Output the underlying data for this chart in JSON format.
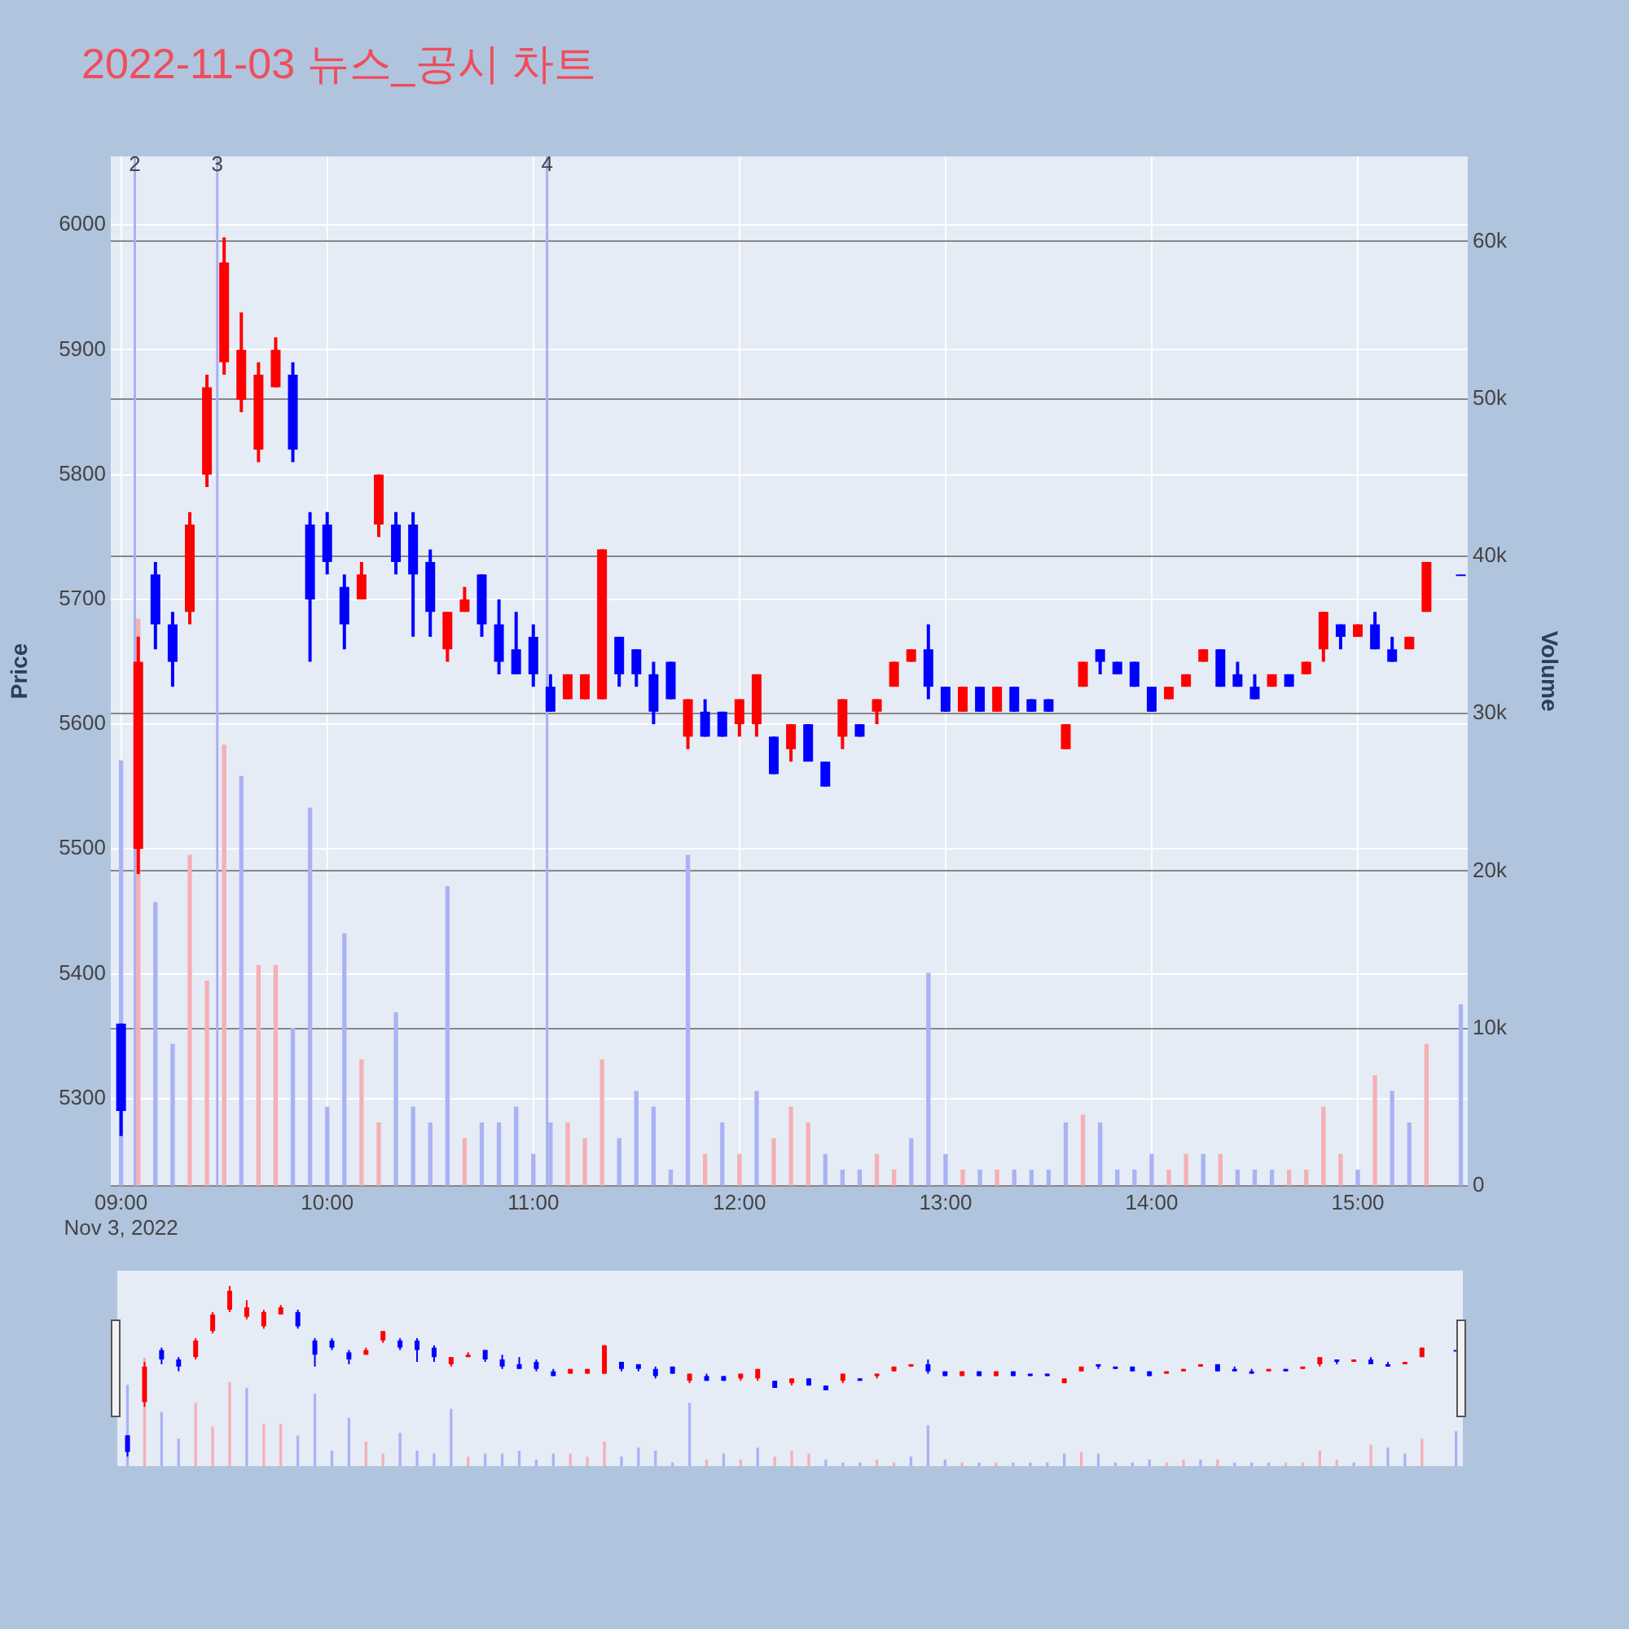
{
  "chart_data": {
    "type": "candlestick",
    "title": "2022-11-03 뉴스_공시 차트",
    "ylabel": "Price",
    "y2label": "Volume",
    "x": [
      "2022-11-03T09:00",
      "2022-11-03T09:05",
      "2022-11-03T09:10",
      "2022-11-03T09:15",
      "2022-11-03T09:20",
      "2022-11-03T09:25",
      "2022-11-03T09:30",
      "2022-11-03T09:35",
      "2022-11-03T09:40",
      "2022-11-03T09:45",
      "2022-11-03T09:50",
      "2022-11-03T09:55",
      "2022-11-03T10:00",
      "2022-11-03T10:05",
      "2022-11-03T10:10",
      "2022-11-03T10:15",
      "2022-11-03T10:20",
      "2022-11-03T10:25",
      "2022-11-03T10:30",
      "2022-11-03T10:35",
      "2022-11-03T10:40",
      "2022-11-03T10:45",
      "2022-11-03T10:50",
      "2022-11-03T10:55",
      "2022-11-03T11:00",
      "2022-11-03T11:05",
      "2022-11-03T11:10",
      "2022-11-03T11:15",
      "2022-11-03T11:20",
      "2022-11-03T11:25",
      "2022-11-03T11:30",
      "2022-11-03T11:35",
      "2022-11-03T11:40",
      "2022-11-03T11:45",
      "2022-11-03T11:50",
      "2022-11-03T11:55",
      "2022-11-03T12:00",
      "2022-11-03T12:05",
      "2022-11-03T12:10",
      "2022-11-03T12:15",
      "2022-11-03T12:20",
      "2022-11-03T12:25",
      "2022-11-03T12:30",
      "2022-11-03T12:35",
      "2022-11-03T12:40",
      "2022-11-03T12:45",
      "2022-11-03T12:50",
      "2022-11-03T12:55",
      "2022-11-03T13:00",
      "2022-11-03T13:05",
      "2022-11-03T13:10",
      "2022-11-03T13:15",
      "2022-11-03T13:20",
      "2022-11-03T13:25",
      "2022-11-03T13:30",
      "2022-11-03T13:35",
      "2022-11-03T13:40",
      "2022-11-03T13:45",
      "2022-11-03T13:50",
      "2022-11-03T13:55",
      "2022-11-03T14:00",
      "2022-11-03T14:05",
      "2022-11-03T14:10",
      "2022-11-03T14:15",
      "2022-11-03T14:20",
      "2022-11-03T14:25",
      "2022-11-03T14:30",
      "2022-11-03T14:35",
      "2022-11-03T14:40",
      "2022-11-03T14:45",
      "2022-11-03T14:50",
      "2022-11-03T14:55",
      "2022-11-03T15:00",
      "2022-11-03T15:05",
      "2022-11-03T15:10",
      "2022-11-03T15:15",
      "2022-11-03T15:20",
      "2022-11-03T15:30"
    ],
    "ohlc": [
      [
        5360,
        5360,
        5270,
        5290
      ],
      [
        5500,
        5670,
        5480,
        5650
      ],
      [
        5720,
        5730,
        5660,
        5680
      ],
      [
        5680,
        5690,
        5630,
        5650
      ],
      [
        5690,
        5770,
        5680,
        5760
      ],
      [
        5800,
        5880,
        5790,
        5870
      ],
      [
        5890,
        5990,
        5880,
        5970
      ],
      [
        5860,
        5930,
        5850,
        5900
      ],
      [
        5820,
        5890,
        5810,
        5880
      ],
      [
        5870,
        5910,
        5870,
        5900
      ],
      [
        5880,
        5890,
        5810,
        5820
      ],
      [
        5760,
        5770,
        5650,
        5700
      ],
      [
        5760,
        5770,
        5720,
        5730
      ],
      [
        5710,
        5720,
        5660,
        5680
      ],
      [
        5700,
        5730,
        5700,
        5720
      ],
      [
        5760,
        5800,
        5750,
        5800
      ],
      [
        5760,
        5770,
        5720,
        5730
      ],
      [
        5760,
        5770,
        5670,
        5720
      ],
      [
        5730,
        5740,
        5670,
        5690
      ],
      [
        5660,
        5690,
        5650,
        5690
      ],
      [
        5690,
        5710,
        5690,
        5700
      ],
      [
        5720,
        5720,
        5670,
        5680
      ],
      [
        5680,
        5700,
        5640,
        5650
      ],
      [
        5660,
        5690,
        5640,
        5640
      ],
      [
        5670,
        5680,
        5630,
        5640
      ],
      [
        5630,
        5640,
        5610,
        5610
      ],
      [
        5620,
        5640,
        5620,
        5640
      ],
      [
        5620,
        5640,
        5620,
        5640
      ],
      [
        5620,
        5740,
        5620,
        5740
      ],
      [
        5670,
        5670,
        5630,
        5640
      ],
      [
        5660,
        5660,
        5630,
        5640
      ],
      [
        5640,
        5650,
        5600,
        5610
      ],
      [
        5650,
        5650,
        5620,
        5620
      ],
      [
        5590,
        5620,
        5580,
        5620
      ],
      [
        5610,
        5620,
        5590,
        5590
      ],
      [
        5610,
        5610,
        5590,
        5590
      ],
      [
        5600,
        5620,
        5590,
        5620
      ],
      [
        5600,
        5640,
        5590,
        5640
      ],
      [
        5590,
        5590,
        5560,
        5560
      ],
      [
        5580,
        5600,
        5570,
        5600
      ],
      [
        5600,
        5600,
        5570,
        5570
      ],
      [
        5570,
        5570,
        5550,
        5550
      ],
      [
        5590,
        5620,
        5580,
        5620
      ],
      [
        5600,
        5600,
        5590,
        5590
      ],
      [
        5610,
        5620,
        5600,
        5620
      ],
      [
        5630,
        5650,
        5630,
        5650
      ],
      [
        5650,
        5660,
        5650,
        5660
      ],
      [
        5660,
        5680,
        5620,
        5630
      ],
      [
        5630,
        5630,
        5610,
        5610
      ],
      [
        5610,
        5630,
        5610,
        5630
      ],
      [
        5630,
        5630,
        5610,
        5610
      ],
      [
        5610,
        5630,
        5610,
        5630
      ],
      [
        5630,
        5630,
        5610,
        5610
      ],
      [
        5620,
        5620,
        5610,
        5610
      ],
      [
        5620,
        5620,
        5610,
        5610
      ],
      [
        5580,
        5600,
        5580,
        5600
      ],
      [
        5630,
        5650,
        5630,
        5650
      ],
      [
        5660,
        5660,
        5640,
        5650
      ],
      [
        5650,
        5650,
        5640,
        5640
      ],
      [
        5650,
        5650,
        5630,
        5630
      ],
      [
        5630,
        5630,
        5610,
        5610
      ],
      [
        5620,
        5630,
        5620,
        5630
      ],
      [
        5630,
        5640,
        5630,
        5640
      ],
      [
        5650,
        5660,
        5650,
        5660
      ],
      [
        5660,
        5660,
        5630,
        5630
      ],
      [
        5640,
        5650,
        5630,
        5630
      ],
      [
        5630,
        5640,
        5620,
        5620
      ],
      [
        5630,
        5640,
        5630,
        5640
      ],
      [
        5640,
        5640,
        5630,
        5630
      ],
      [
        5640,
        5650,
        5640,
        5650
      ],
      [
        5660,
        5690,
        5650,
        5690
      ],
      [
        5680,
        5680,
        5660,
        5670
      ],
      [
        5670,
        5680,
        5670,
        5680
      ],
      [
        5680,
        5690,
        5660,
        5660
      ],
      [
        5660,
        5670,
        5650,
        5650
      ],
      [
        5660,
        5670,
        5660,
        5670
      ],
      [
        5690,
        5730,
        5690,
        5730
      ],
      [
        5720,
        5720,
        5720,
        5720
      ]
    ],
    "colors": [
      "#0000ff",
      "#ff0000",
      "#0000ff",
      "#0000ff",
      "#ff0000",
      "#ff0000",
      "#ff0000",
      "#ff0000",
      "#ff0000",
      "#ff0000",
      "#0000ff",
      "#0000ff",
      "#0000ff",
      "#0000ff",
      "#ff0000",
      "#ff0000",
      "#0000ff",
      "#0000ff",
      "#0000ff",
      "#ff0000",
      "#ff0000",
      "#0000ff",
      "#0000ff",
      "#0000ff",
      "#0000ff",
      "#0000ff",
      "#ff0000",
      "#ff0000",
      "#ff0000",
      "#0000ff",
      "#0000ff",
      "#0000ff",
      "#0000ff",
      "#ff0000",
      "#0000ff",
      "#0000ff",
      "#ff0000",
      "#ff0000",
      "#0000ff",
      "#ff0000",
      "#0000ff",
      "#0000ff",
      "#ff0000",
      "#0000ff",
      "#ff0000",
      "#ff0000",
      "#ff0000",
      "#0000ff",
      "#0000ff",
      "#ff0000",
      "#0000ff",
      "#ff0000",
      "#0000ff",
      "#0000ff",
      "#0000ff",
      "#ff0000",
      "#ff0000",
      "#0000ff",
      "#0000ff",
      "#0000ff",
      "#0000ff",
      "#ff0000",
      "#ff0000",
      "#ff0000",
      "#0000ff",
      "#0000ff",
      "#0000ff",
      "#ff0000",
      "#0000ff",
      "#ff0000",
      "#ff0000",
      "#0000ff",
      "#ff0000",
      "#0000ff",
      "#0000ff",
      "#ff0000",
      "#ff0000",
      "#0000ff"
    ],
    "series": [
      {
        "type": "bar",
        "axis": "y2",
        "values": [
          27000,
          36000,
          18000,
          9000,
          21000,
          13000,
          28000,
          26000,
          14000,
          14000,
          10000,
          24000,
          5000,
          16000,
          8000,
          4000,
          11000,
          5000,
          4000,
          19000,
          3000,
          4000,
          4000,
          5000,
          2000,
          4000,
          4000,
          3000,
          8000,
          3000,
          6000,
          5000,
          1000,
          21000,
          2000,
          4000,
          2000,
          6000,
          3000,
          5000,
          4000,
          2000,
          1000,
          1000,
          2000,
          1000,
          3000,
          13500,
          2000,
          1000,
          1000,
          1000,
          1000,
          1000,
          1000,
          4000,
          4500,
          4000,
          1000,
          1000,
          2000,
          1000,
          2000,
          2000,
          2000,
          1000,
          1000,
          1000,
          1000,
          1000,
          5000,
          2000,
          1000,
          7000,
          6000,
          4000,
          9000,
          11500
        ],
        "colors": [
          "#aab2f5",
          "#f5b0b5",
          "#aab2f5",
          "#aab2f5",
          "#f5b0b5",
          "#f5b0b5",
          "#f5b0b5",
          "#aab2f5",
          "#f5b0b5",
          "#f5b0b5",
          "#aab2f5",
          "#aab2f5",
          "#aab2f5",
          "#aab2f5",
          "#f5b0b5",
          "#f5b0b5",
          "#aab2f5",
          "#aab2f5",
          "#aab2f5",
          "#aab2f5",
          "#f5b0b5",
          "#aab2f5",
          "#aab2f5",
          "#aab2f5",
          "#aab2f5",
          "#aab2f5",
          "#f5b0b5",
          "#f5b0b5",
          "#f5b0b5",
          "#aab2f5",
          "#aab2f5",
          "#aab2f5",
          "#aab2f5",
          "#aab2f5",
          "#f5b0b5",
          "#aab2f5",
          "#f5b0b5",
          "#aab2f5",
          "#f5b0b5",
          "#f5b0b5",
          "#f5b0b5",
          "#aab2f5",
          "#aab2f5",
          "#aab2f5",
          "#f5b0b5",
          "#f5b0b5",
          "#aab2f5",
          "#aab2f5",
          "#aab2f5",
          "#f5b0b5",
          "#aab2f5",
          "#f5b0b5",
          "#aab2f5",
          "#aab2f5",
          "#aab2f5",
          "#aab2f5",
          "#f5b0b5",
          "#aab2f5",
          "#aab2f5",
          "#aab2f5",
          "#aab2f5",
          "#f5b0b5",
          "#f5b0b5",
          "#aab2f5",
          "#f5b0b5",
          "#aab2f5",
          "#aab2f5",
          "#aab2f5",
          "#f5b0b5",
          "#f5b0b5",
          "#f5b0b5",
          "#f5b0b5",
          "#aab2f5",
          "#f5b0b5",
          "#aab2f5",
          "#aab2f5",
          "#f5b0b5",
          "#aab2f5"
        ]
      }
    ],
    "xlim": [
      "2022-11-03T08:57",
      "2022-11-03T15:32"
    ],
    "xticks": [
      {
        "value": "2022-11-03T09:00",
        "label": "09:00\nNov 3, 2022"
      },
      {
        "value": "2022-11-03T10:00",
        "label": "10:00"
      },
      {
        "value": "2022-11-03T11:00",
        "label": "11:00"
      },
      {
        "value": "2022-11-03T12:00",
        "label": "12:00"
      },
      {
        "value": "2022-11-03T13:00",
        "label": "13:00"
      },
      {
        "value": "2022-11-03T14:00",
        "label": "14:00"
      },
      {
        "value": "2022-11-03T15:00",
        "label": "15:00"
      }
    ],
    "ylim": [
      5230,
      6055
    ],
    "yticks": [
      5300,
      5400,
      5500,
      5600,
      5700,
      5800,
      5900,
      6000
    ],
    "y2lim": [
      0,
      65400
    ],
    "y2ticks": [
      0,
      {
        "value": 10000,
        "label": "10k"
      },
      {
        "value": 20000,
        "label": "20k"
      },
      {
        "value": 30000,
        "label": "30k"
      },
      {
        "value": 40000,
        "label": "40k"
      },
      {
        "value": 50000,
        "label": "50k"
      },
      {
        "value": 60000,
        "label": "60k"
      }
    ],
    "grid": true,
    "ref_lines": [
      {
        "axis": "x",
        "value": "2022-11-03T09:04",
        "label": "2",
        "color": "#a8b0f0"
      },
      {
        "axis": "x",
        "value": "2022-11-03T09:28",
        "label": "3",
        "color": "#a8b0f0"
      },
      {
        "axis": "x",
        "value": "2022-11-03T11:04",
        "label": "4",
        "color": "#a8b0f0"
      }
    ]
  }
}
